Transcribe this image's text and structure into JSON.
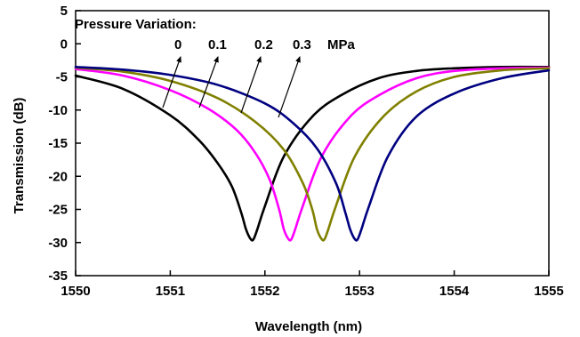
{
  "chart_data": {
    "type": "line",
    "title": "",
    "xlabel": "Wavelength (nm)",
    "ylabel": "Transmission (dB)",
    "xlim": [
      1550,
      1555
    ],
    "ylim": [
      -35,
      5
    ],
    "x_ticks": [
      "1550",
      "1551",
      "1552",
      "1553",
      "1554",
      "1555"
    ],
    "y_ticks": [
      "5",
      "0",
      "-5",
      "-10",
      "-15",
      "-20",
      "-25",
      "-30",
      "-35"
    ],
    "grid": false,
    "legend": "none",
    "annotation_title": "Pressure Variation:",
    "annotation_unit": "MPa",
    "series": [
      {
        "label": "0",
        "color": "#000000",
        "x": [
          1550.0,
          1550.5,
          1551.0,
          1551.3,
          1551.5,
          1551.65,
          1551.75,
          1551.8,
          1551.85,
          1551.88,
          1551.92,
          1552.0,
          1552.2,
          1552.5,
          1552.8,
          1553.2,
          1553.6,
          1554.0,
          1554.5,
          1555.0
        ],
        "y": [
          -4.8,
          -6.8,
          -10.8,
          -14.5,
          -18.0,
          -21.5,
          -25.5,
          -28.0,
          -29.5,
          -29.5,
          -28.0,
          -24.5,
          -17.0,
          -11.0,
          -7.8,
          -5.2,
          -4.1,
          -3.7,
          -3.5,
          -3.5
        ]
      },
      {
        "label": "0.1",
        "color": "#ff00ff",
        "x": [
          1550.0,
          1550.5,
          1551.0,
          1551.4,
          1551.7,
          1551.9,
          1552.05,
          1552.15,
          1552.2,
          1552.25,
          1552.28,
          1552.32,
          1552.4,
          1552.6,
          1552.9,
          1553.2,
          1553.6,
          1554.0,
          1554.5,
          1555.0
        ],
        "y": [
          -3.8,
          -4.8,
          -7.0,
          -9.8,
          -13.0,
          -16.5,
          -20.5,
          -25.0,
          -28.0,
          -29.5,
          -29.5,
          -28.0,
          -24.5,
          -17.0,
          -11.0,
          -7.8,
          -5.2,
          -4.1,
          -3.7,
          -3.6
        ]
      },
      {
        "label": "0.2",
        "color": "#808000",
        "x": [
          1550.0,
          1550.5,
          1551.0,
          1551.5,
          1551.9,
          1552.2,
          1552.4,
          1552.5,
          1552.55,
          1552.6,
          1552.63,
          1552.67,
          1552.75,
          1552.95,
          1553.25,
          1553.6,
          1554.0,
          1554.5,
          1555.0
        ],
        "y": [
          -3.6,
          -4.2,
          -5.6,
          -8.2,
          -11.8,
          -16.0,
          -21.0,
          -25.0,
          -28.0,
          -29.5,
          -29.5,
          -28.0,
          -24.5,
          -17.0,
          -11.0,
          -7.2,
          -5.0,
          -4.0,
          -3.7
        ]
      },
      {
        "label": "0.3",
        "color": "#000080",
        "x": [
          1550.0,
          1550.5,
          1551.0,
          1551.5,
          1552.0,
          1552.3,
          1552.55,
          1552.75,
          1552.85,
          1552.9,
          1552.95,
          1552.98,
          1553.02,
          1553.1,
          1553.3,
          1553.6,
          1554.0,
          1554.5,
          1555.0
        ],
        "y": [
          -3.5,
          -3.9,
          -4.7,
          -6.2,
          -9.0,
          -12.0,
          -15.8,
          -21.0,
          -25.5,
          -28.0,
          -29.5,
          -29.5,
          -28.0,
          -24.5,
          -17.0,
          -11.0,
          -7.5,
          -5.2,
          -4.0
        ]
      }
    ]
  }
}
